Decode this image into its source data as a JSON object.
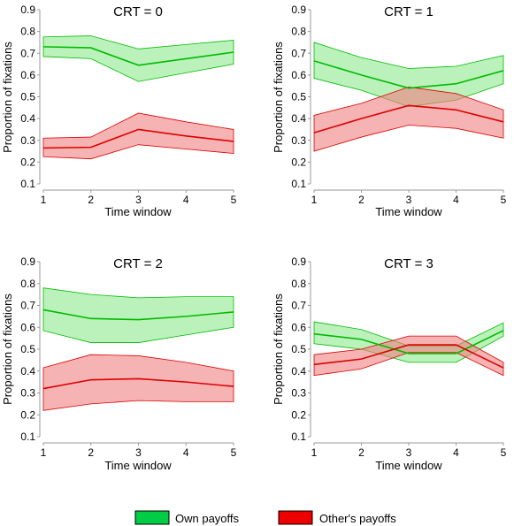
{
  "colors": {
    "own_line": "#00bb00",
    "own_band": "#8ee88e",
    "other_line": "#dd0000",
    "other_band": "#f08080"
  },
  "legend": [
    {
      "label": "Own payoffs",
      "swatch": "#00cc44"
    },
    {
      "label": "Other's payoffs",
      "swatch": "#ee0000"
    }
  ],
  "chart_data": [
    {
      "type": "line",
      "title": "CRT = 0",
      "xlabel": "Time window",
      "ylabel": "Proportion of fixations",
      "x": [
        1,
        2,
        3,
        4,
        5
      ],
      "xlim": [
        1,
        5
      ],
      "ylim": [
        0.1,
        0.9
      ],
      "yticks": [
        "0.1",
        "0.2",
        "0.3",
        "0.4",
        "0.5",
        "0.6",
        "0.7",
        "0.8",
        "0.9"
      ],
      "xticks": [
        "1",
        "2",
        "3",
        "4",
        "5"
      ],
      "series": [
        {
          "name": "Own payoffs",
          "values": [
            0.73,
            0.725,
            0.645,
            0.675,
            0.705
          ],
          "lower": [
            0.685,
            0.675,
            0.57,
            0.61,
            0.65
          ],
          "upper": [
            0.775,
            0.78,
            0.72,
            0.74,
            0.76
          ]
        },
        {
          "name": "Other's payoffs",
          "values": [
            0.265,
            0.268,
            0.35,
            0.32,
            0.295
          ],
          "lower": [
            0.225,
            0.215,
            0.28,
            0.26,
            0.24
          ],
          "upper": [
            0.31,
            0.315,
            0.425,
            0.385,
            0.35
          ]
        }
      ]
    },
    {
      "type": "line",
      "title": "CRT = 1",
      "xlabel": "Time window",
      "ylabel": "Proportion of fixations",
      "x": [
        1,
        2,
        3,
        4,
        5
      ],
      "xlim": [
        1,
        5
      ],
      "ylim": [
        0.1,
        0.9
      ],
      "yticks": [
        "0.1",
        "0.2",
        "0.3",
        "0.4",
        "0.5",
        "0.6",
        "0.7",
        "0.8",
        "0.9"
      ],
      "xticks": [
        "1",
        "2",
        "3",
        "4",
        "5"
      ],
      "series": [
        {
          "name": "Own payoffs",
          "values": [
            0.665,
            0.6,
            0.54,
            0.56,
            0.62
          ],
          "lower": [
            0.585,
            0.53,
            0.455,
            0.485,
            0.56
          ],
          "upper": [
            0.75,
            0.68,
            0.63,
            0.64,
            0.69
          ]
        },
        {
          "name": "Other's payoffs",
          "values": [
            0.335,
            0.4,
            0.46,
            0.44,
            0.385
          ],
          "lower": [
            0.25,
            0.315,
            0.37,
            0.355,
            0.31
          ],
          "upper": [
            0.415,
            0.47,
            0.545,
            0.515,
            0.44
          ]
        }
      ]
    },
    {
      "type": "line",
      "title": "CRT = 2",
      "xlabel": "Time window",
      "ylabel": "Proportion of fixations",
      "x": [
        1,
        2,
        3,
        4,
        5
      ],
      "xlim": [
        1,
        5
      ],
      "ylim": [
        0.1,
        0.9
      ],
      "yticks": [
        "0.1",
        "0.2",
        "0.3",
        "0.4",
        "0.5",
        "0.6",
        "0.7",
        "0.8",
        "0.9"
      ],
      "xticks": [
        "1",
        "2",
        "3",
        "4",
        "5"
      ],
      "series": [
        {
          "name": "Own payoffs",
          "values": [
            0.68,
            0.64,
            0.635,
            0.65,
            0.67
          ],
          "lower": [
            0.585,
            0.53,
            0.53,
            0.565,
            0.6
          ],
          "upper": [
            0.78,
            0.75,
            0.735,
            0.74,
            0.74
          ]
        },
        {
          "name": "Other's payoffs",
          "values": [
            0.32,
            0.36,
            0.365,
            0.35,
            0.33
          ],
          "lower": [
            0.22,
            0.25,
            0.265,
            0.26,
            0.26
          ],
          "upper": [
            0.415,
            0.475,
            0.47,
            0.44,
            0.4
          ]
        }
      ]
    },
    {
      "type": "line",
      "title": "CRT = 3",
      "xlabel": "Time window",
      "ylabel": "Proportion of fixations",
      "x": [
        1,
        2,
        3,
        4,
        5
      ],
      "xlim": [
        1,
        5
      ],
      "ylim": [
        0.1,
        0.9
      ],
      "yticks": [
        "0.1",
        "0.2",
        "0.3",
        "0.4",
        "0.5",
        "0.6",
        "0.7",
        "0.8",
        "0.9"
      ],
      "xticks": [
        "1",
        "2",
        "3",
        "4",
        "5"
      ],
      "series": [
        {
          "name": "Own payoffs",
          "values": [
            0.57,
            0.545,
            0.48,
            0.48,
            0.585
          ],
          "lower": [
            0.525,
            0.5,
            0.44,
            0.44,
            0.56
          ],
          "upper": [
            0.625,
            0.59,
            0.515,
            0.515,
            0.62
          ]
        },
        {
          "name": "Other's payoffs",
          "values": [
            0.43,
            0.455,
            0.52,
            0.52,
            0.415
          ],
          "lower": [
            0.38,
            0.41,
            0.485,
            0.485,
            0.38
          ],
          "upper": [
            0.475,
            0.5,
            0.56,
            0.56,
            0.44
          ]
        }
      ]
    }
  ]
}
